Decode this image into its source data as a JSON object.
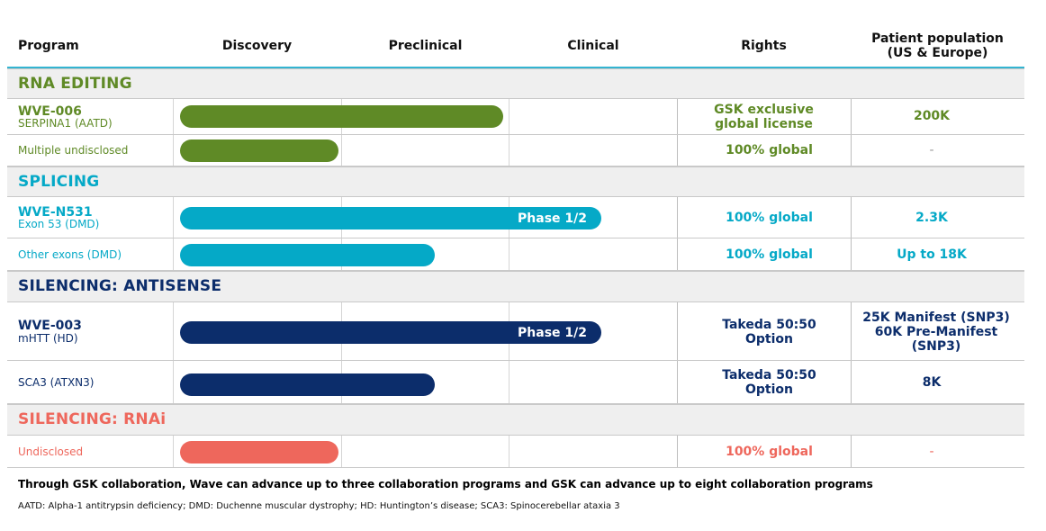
{
  "headers": {
    "program": "Program",
    "discovery": "Discovery",
    "preclinical": "Preclinical",
    "clinical": "Clinical",
    "rights": "Rights",
    "population_line1": "Patient population",
    "population_line2": "(US & Europe)"
  },
  "colors": {
    "green": "#5f8a26",
    "teal": "#05a9c7",
    "navy": "#0c2d6b",
    "coral": "#ee675c",
    "header_line": "#33b4d1"
  },
  "sections": {
    "rna_editing": "RNA EDITING",
    "splicing": "SPLICING",
    "antisense": "SILENCING: ANTISENSE",
    "rnai": "SILENCING: RNAi"
  },
  "rows": {
    "wve006": {
      "name": "WVE-006",
      "sub": "SERPINA1 (AATD)",
      "rights_line1": "GSK exclusive",
      "rights_line2": "global license",
      "population": "200K"
    },
    "multiple": {
      "name": "Multiple undisclosed",
      "rights": "100% global",
      "population": "-"
    },
    "wven531": {
      "name": "WVE-N531",
      "sub": "Exon 53 (DMD)",
      "phase": "Phase 1/2",
      "rights": "100% global",
      "population": "2.3K"
    },
    "other_exons": {
      "name": "Other exons (DMD)",
      "rights": "100% global",
      "population": "Up to 18K"
    },
    "wve003": {
      "name": "WVE-003",
      "sub": "mHTT (HD)",
      "phase": "Phase 1/2",
      "rights_line1": "Takeda 50:50",
      "rights_line2": "Option",
      "population_line1": "25K Manifest (SNP3)",
      "population_line2": "60K Pre-Manifest",
      "population_line3": "(SNP3)"
    },
    "sca3": {
      "name": "SCA3 (ATXN3)",
      "rights_line1": "Takeda 50:50",
      "rights_line2": "Option",
      "population": "8K"
    },
    "undisclosed": {
      "name": "Undisclosed",
      "rights": "100% global",
      "population": "-"
    }
  },
  "footnotes": {
    "collaboration": "Through GSK collaboration, Wave can advance up to three collaboration programs and GSK can advance up to eight collaboration programs",
    "abbreviations": "AATD: Alpha-1 antitrypsin deficiency; DMD: Duchenne muscular dystrophy; HD: Huntington’s disease;  SCA3: Spinocerebellar ataxia 3"
  }
}
